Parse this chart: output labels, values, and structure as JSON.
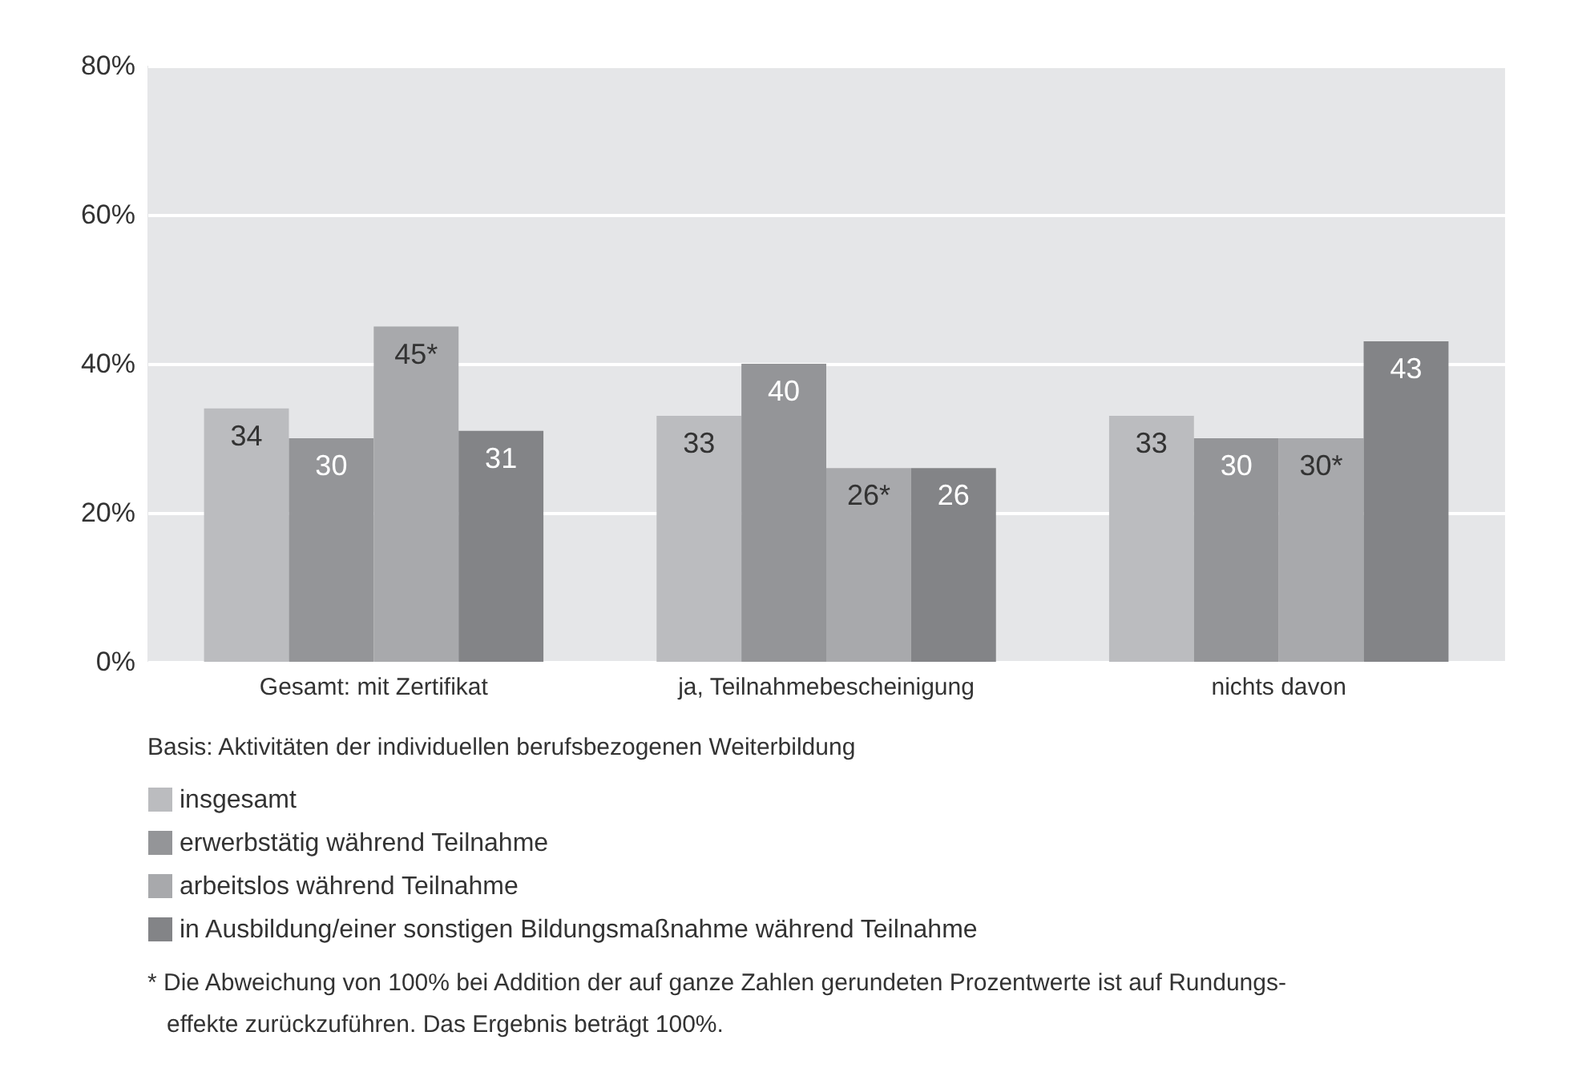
{
  "chart_data": {
    "type": "bar",
    "categories": [
      "Gesamt: mit Zertifikat",
      "ja, Teilnahmebescheinigung",
      "nichts davon"
    ],
    "series": [
      {
        "name": "insgesamt",
        "color": "#bbbcbf",
        "values": [
          34,
          33,
          33
        ],
        "value_labels": [
          "34",
          "33",
          "33"
        ]
      },
      {
        "name": "erwerbstätig während Teilnahme",
        "color": "#949598",
        "values": [
          30,
          40,
          30
        ],
        "value_labels": [
          "30",
          "40",
          "30"
        ]
      },
      {
        "name": "arbeitslos während Teilnahme",
        "color": "#a8a9ac",
        "values": [
          45,
          26,
          30
        ],
        "value_labels": [
          "45*",
          "26*",
          "30*"
        ]
      },
      {
        "name": "in Ausbildung/einer sonstigen Bildungsmaßnahme während Teilnahme",
        "color": "#838487",
        "values": [
          31,
          26,
          43
        ],
        "value_labels": [
          "31",
          "26",
          "43"
        ]
      }
    ],
    "ylim": [
      0,
      80
    ],
    "yticks": [
      {
        "value": 0,
        "label": "0%"
      },
      {
        "value": 20,
        "label": "20%"
      },
      {
        "value": 40,
        "label": "40%"
      },
      {
        "value": 60,
        "label": "60%"
      },
      {
        "value": 80,
        "label": "80%"
      }
    ],
    "grid": "y",
    "legend": "bottom",
    "annotations": [
      "Basis: Aktivitäten der individuellen berufsbezogenen Weiterbildung",
      "* Die Abweichung von 100% bei Addition der auf ganze Zahlen gerundeten Prozentwerte ist auf Rundungs-\neffekte zurückzuführen. Das Ergebnis beträgt 100%."
    ]
  }
}
